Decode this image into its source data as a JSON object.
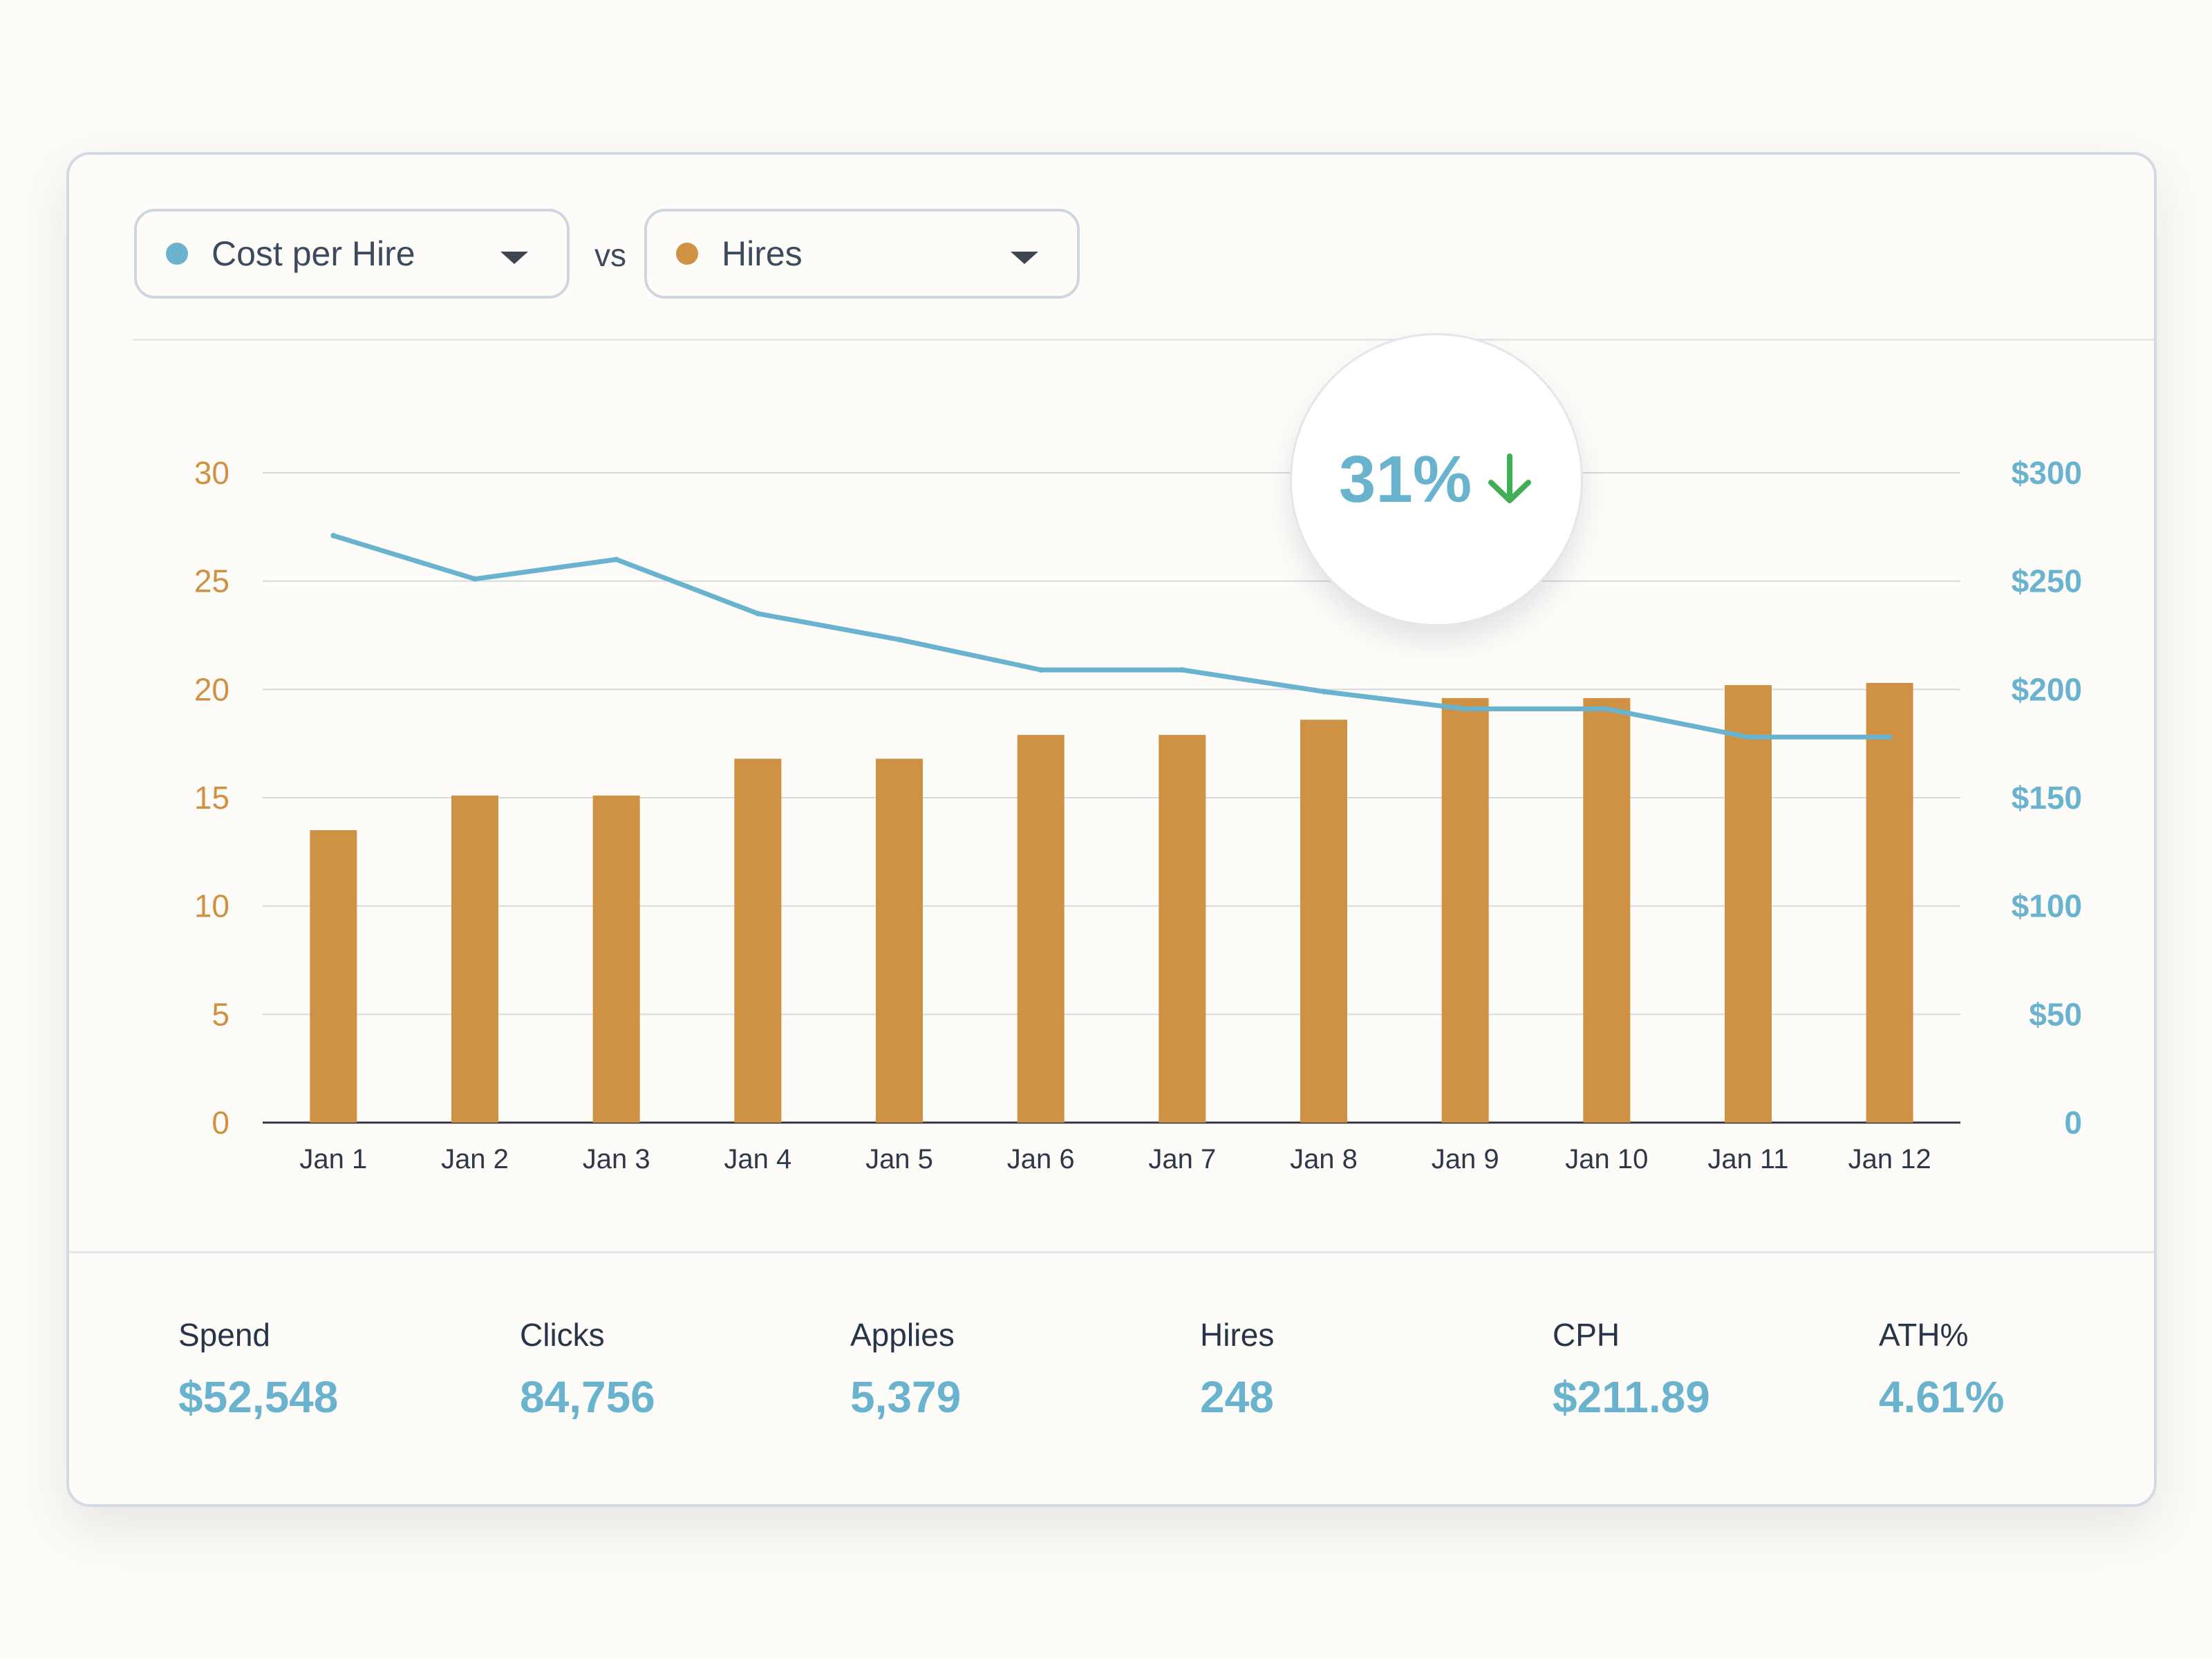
{
  "selectors": {
    "primary": {
      "label": "Cost per Hire",
      "color": "#6ab3cf"
    },
    "vs_label": "vs",
    "secondary": {
      "label": "Hires",
      "color": "#cf9144"
    }
  },
  "badge": {
    "value": "31%",
    "direction": "down",
    "arrow_color": "#3fae55"
  },
  "chart_data": {
    "type": "bar+line",
    "categories": [
      "Jan 1",
      "Jan 2",
      "Jan 3",
      "Jan 4",
      "Jan 5",
      "Jan 6",
      "Jan 7",
      "Jan 8",
      "Jan 9",
      "Jan 10",
      "Jan 11",
      "Jan 12"
    ],
    "series": [
      {
        "name": "Hires",
        "type": "bar",
        "axis": "left",
        "color": "#cf9144",
        "values": [
          13.5,
          15.1,
          15.1,
          16.8,
          16.8,
          17.9,
          17.9,
          18.6,
          19.6,
          19.6,
          20.2,
          20.3
        ]
      },
      {
        "name": "Cost per Hire",
        "type": "line",
        "axis": "right",
        "color": "#6ab3cf",
        "values": [
          271,
          251,
          260,
          235,
          223,
          209,
          209,
          199,
          191,
          191,
          178,
          178
        ]
      }
    ],
    "left_axis": {
      "ticks": [
        "0",
        "5",
        "10",
        "15",
        "20",
        "25",
        "30"
      ],
      "tick_values": [
        0,
        5,
        10,
        15,
        20,
        25,
        30
      ],
      "ylim": [
        0,
        30
      ],
      "color": "#cf9144"
    },
    "right_axis": {
      "ticks": [
        "0",
        "$50",
        "$100",
        "$150",
        "$200",
        "$250",
        "$300"
      ],
      "tick_values": [
        0,
        50,
        100,
        150,
        200,
        250,
        300
      ],
      "ylim": [
        0,
        300
      ],
      "color": "#6ab3cf"
    },
    "grid": true
  },
  "stats": [
    {
      "label": "Spend",
      "value": "$52,548"
    },
    {
      "label": "Clicks",
      "value": "84,756"
    },
    {
      "label": "Applies",
      "value": "5,379"
    },
    {
      "label": "Hires",
      "value": "248"
    },
    {
      "label": "CPH",
      "value": "$211.89"
    },
    {
      "label": "ATH%",
      "value": "4.61%"
    }
  ]
}
